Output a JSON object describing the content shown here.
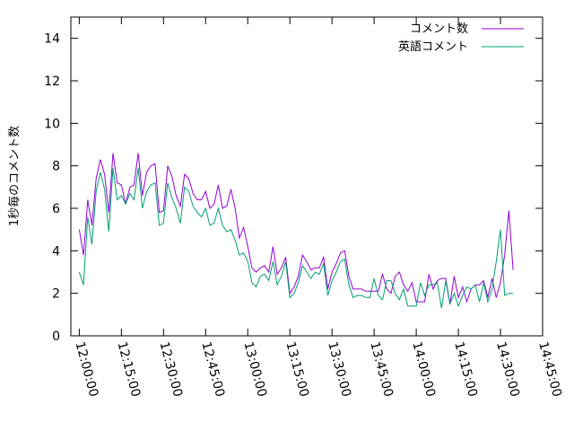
{
  "chart_data": {
    "type": "line",
    "ylabel": "1秒毎のコメント数",
    "ylim": [
      0,
      15
    ],
    "yticks": [
      0,
      2,
      4,
      6,
      8,
      10,
      12,
      14
    ],
    "xlim_minutes": [
      -3,
      165
    ],
    "xticks": [
      {
        "minute": 0,
        "label": "12:00:00"
      },
      {
        "minute": 15,
        "label": "12:15:00"
      },
      {
        "minute": 30,
        "label": "12:30:00"
      },
      {
        "minute": 45,
        "label": "12:45:00"
      },
      {
        "minute": 60,
        "label": "13:00:00"
      },
      {
        "minute": 75,
        "label": "13:15:00"
      },
      {
        "minute": 90,
        "label": "13:30:00"
      },
      {
        "minute": 105,
        "label": "13:45:00"
      },
      {
        "minute": 120,
        "label": "14:00:00"
      },
      {
        "minute": 135,
        "label": "14:15:00"
      },
      {
        "minute": 150,
        "label": "14:30:00"
      },
      {
        "minute": 165,
        "label": "14:45:00"
      }
    ],
    "legend_position": "top-right",
    "grid": false,
    "x_minutes": [
      0,
      1.5,
      3,
      4.5,
      6,
      7.5,
      9,
      10.5,
      12,
      13.5,
      15,
      16.5,
      18,
      19.5,
      21,
      22.5,
      24,
      25.5,
      27,
      28.5,
      30,
      31.5,
      33,
      34.5,
      36,
      37.5,
      39,
      40.5,
      42,
      43.5,
      45,
      46.5,
      48,
      49.5,
      51,
      52.5,
      54,
      55.5,
      57,
      58.5,
      60,
      61.5,
      63,
      64.5,
      66,
      67.5,
      69,
      70.5,
      72,
      73.5,
      75,
      76.5,
      78,
      79.5,
      81,
      82.5,
      84,
      85.5,
      87,
      88.5,
      90,
      91.5,
      93,
      94.5,
      96,
      97.5,
      99,
      100.5,
      102,
      103.5,
      105,
      106.5,
      108,
      109.5,
      111,
      112.5,
      114,
      115.5,
      117,
      118.5,
      120,
      121.5,
      123,
      124.5,
      126,
      127.5,
      129,
      130.5,
      132,
      133.5,
      135,
      136.5,
      138,
      139.5,
      141,
      142.5,
      144,
      145.5,
      147,
      148.5,
      150,
      151.5,
      153,
      154.5,
      156,
      157.5
    ],
    "series": [
      {
        "name": "コメント数",
        "color": "#9400d3",
        "values": [
          5.0,
          3.8,
          6.4,
          5.2,
          7.4,
          8.3,
          7.6,
          5.8,
          8.6,
          7.2,
          7.1,
          6.2,
          7.0,
          7.1,
          8.6,
          6.6,
          7.7,
          8.0,
          8.1,
          5.8,
          5.9,
          8.0,
          7.5,
          6.6,
          6.1,
          7.6,
          7.4,
          6.7,
          6.4,
          6.4,
          6.8,
          6.0,
          6.2,
          7.1,
          6.0,
          6.1,
          6.9,
          6.0,
          4.6,
          5.1,
          4.2,
          3.2,
          3.0,
          3.2,
          3.3,
          3.0,
          4.2,
          2.9,
          3.2,
          3.7,
          2.0,
          2.3,
          2.8,
          3.8,
          3.5,
          3.1,
          3.2,
          3.2,
          3.7,
          2.2,
          3.0,
          3.4,
          3.9,
          4.0,
          2.8,
          2.2,
          2.2,
          2.2,
          2.1,
          2.1,
          2.1,
          2.1,
          2.9,
          2.2,
          2.0,
          2.8,
          3.0,
          2.4,
          2.1,
          2.5,
          1.6,
          1.6,
          1.6,
          2.9,
          2.2,
          2.6,
          2.7,
          2.7,
          1.5,
          2.8,
          1.8,
          2.3,
          1.6,
          2.2,
          2.4,
          2.4,
          2.6,
          1.8,
          2.7,
          1.8,
          2.5,
          3.8,
          5.9,
          3.1
        ]
      },
      {
        "name": "英語コメント",
        "color": "#009e73",
        "values": [
          3.0,
          2.4,
          5.6,
          4.3,
          6.8,
          7.7,
          6.9,
          4.9,
          7.9,
          6.4,
          6.6,
          6.2,
          6.7,
          6.4,
          7.9,
          6.0,
          6.8,
          7.1,
          7.2,
          5.2,
          5.3,
          7.2,
          6.5,
          6.0,
          5.3,
          7.0,
          6.8,
          6.1,
          5.8,
          5.6,
          6.0,
          5.2,
          5.3,
          6.0,
          5.2,
          4.9,
          5.0,
          4.5,
          3.8,
          3.9,
          3.5,
          2.5,
          2.3,
          2.8,
          2.9,
          2.6,
          3.5,
          2.4,
          2.8,
          3.5,
          1.8,
          2.0,
          2.5,
          3.3,
          3.0,
          2.7,
          3.0,
          2.9,
          3.4,
          1.9,
          2.6,
          3.0,
          3.5,
          3.6,
          2.4,
          1.8,
          1.9,
          1.9,
          1.8,
          1.8,
          2.7,
          1.9,
          1.7,
          2.6,
          2.6,
          2.0,
          1.7,
          2.2,
          1.4,
          1.4,
          1.4,
          2.5,
          1.9,
          2.4,
          2.4,
          2.5,
          1.3,
          2.6,
          1.5,
          2.0,
          1.4,
          1.9,
          2.3,
          2.2,
          2.4,
          1.6,
          2.5,
          1.6,
          2.2,
          3.5,
          5.0,
          1.9,
          2.0,
          2.0
        ]
      }
    ]
  }
}
